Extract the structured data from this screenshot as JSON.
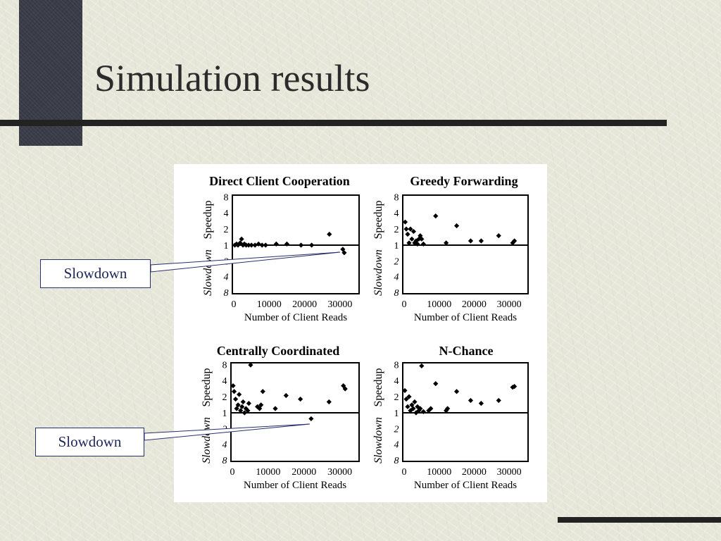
{
  "slide": {
    "title": "Simulation results"
  },
  "callouts": [
    {
      "label": "Slowdown"
    },
    {
      "label": "Slowdown"
    }
  ],
  "chart_data": [
    {
      "type": "scatter",
      "title": "Direct Client Cooperation",
      "xlabel": "Number of Client Reads",
      "ylabel_up": "Speedup",
      "ylabel_down": "Slowdown",
      "xlim": [
        0,
        35000
      ],
      "xticks": [
        "0",
        "10000",
        "20000",
        "30000"
      ],
      "yticks": [
        "8",
        "4",
        "2",
        "1",
        "2",
        "4",
        "8"
      ],
      "y_scale": "log2, signed (positive = speedup, negative = slowdown), baseline 1",
      "points": [
        [
          300,
          1
        ],
        [
          800,
          1.05
        ],
        [
          1200,
          1
        ],
        [
          1800,
          1.1
        ],
        [
          2200,
          1.3
        ],
        [
          2600,
          1
        ],
        [
          3000,
          1.05
        ],
        [
          3500,
          1
        ],
        [
          4200,
          1
        ],
        [
          5000,
          1
        ],
        [
          6000,
          1
        ],
        [
          7000,
          1.05
        ],
        [
          8000,
          1
        ],
        [
          9000,
          1
        ],
        [
          12000,
          1.05
        ],
        [
          15000,
          1.05
        ],
        [
          19000,
          1
        ],
        [
          22000,
          1
        ],
        [
          27000,
          1.6
        ],
        [
          30800,
          -1.2
        ],
        [
          31200,
          -1.4
        ]
      ],
      "grid": false
    },
    {
      "type": "scatter",
      "title": "Greedy Forwarding",
      "xlabel": "Number of Client Reads",
      "ylabel_up": "Speedup",
      "ylabel_down": "Slowdown",
      "xlim": [
        0,
        35000
      ],
      "xticks": [
        "0",
        "10000",
        "20000",
        "30000"
      ],
      "yticks": [
        "8",
        "4",
        "2",
        "1",
        "2",
        "4",
        "8"
      ],
      "y_scale": "log2, signed (positive = speedup, negative = slowdown), baseline 1",
      "points": [
        [
          300,
          2.7
        ],
        [
          600,
          2.0
        ],
        [
          1000,
          1.6
        ],
        [
          1400,
          1.1
        ],
        [
          1800,
          2.0
        ],
        [
          2200,
          1.3
        ],
        [
          2700,
          1.8
        ],
        [
          3000,
          1.1
        ],
        [
          3400,
          1.2
        ],
        [
          3800,
          1.05
        ],
        [
          4200,
          1.3
        ],
        [
          4600,
          1.5
        ],
        [
          5000,
          1.3
        ],
        [
          5500,
          1.05
        ],
        [
          9000,
          3.5
        ],
        [
          12000,
          1.1
        ],
        [
          15000,
          2.3
        ],
        [
          19000,
          1.2
        ],
        [
          22000,
          1.2
        ],
        [
          27000,
          1.5
        ],
        [
          31000,
          1.1
        ],
        [
          31500,
          1.2
        ]
      ],
      "grid": false
    },
    {
      "type": "scatter",
      "title": "Centrally Coordinated",
      "xlabel": "Number of Client Reads",
      "ylabel_up": "Speedup",
      "ylabel_down": "Slowdown",
      "xlim": [
        0,
        35000
      ],
      "xticks": [
        "0",
        "10000",
        "20000",
        "30000"
      ],
      "yticks": [
        "8",
        "4",
        "2",
        "1",
        "2",
        "4",
        "8"
      ],
      "y_scale": "log2, signed (positive = speedup, negative = slowdown), baseline 1",
      "points": [
        [
          200,
          3.2
        ],
        [
          500,
          2.5
        ],
        [
          900,
          1.8
        ],
        [
          1200,
          1.2
        ],
        [
          1600,
          1.4
        ],
        [
          1900,
          2.2
        ],
        [
          2300,
          1.1
        ],
        [
          2700,
          1.3
        ],
        [
          3000,
          1.6
        ],
        [
          3400,
          1.0
        ],
        [
          3800,
          1.2
        ],
        [
          4300,
          1.1
        ],
        [
          4600,
          1.5
        ],
        [
          5100,
          7.8
        ],
        [
          7000,
          1.3
        ],
        [
          7600,
          1.2
        ],
        [
          8000,
          1.4
        ],
        [
          8500,
          2.5
        ],
        [
          12000,
          1.2
        ],
        [
          15000,
          2.1
        ],
        [
          19000,
          1.8
        ],
        [
          22000,
          -1.3
        ],
        [
          27000,
          1.6
        ],
        [
          31000,
          3.2
        ],
        [
          31500,
          2.8
        ]
      ],
      "grid": false
    },
    {
      "type": "scatter",
      "title": "N-Chance",
      "xlabel": "Number of Client Reads",
      "ylabel_up": "Speedup",
      "ylabel_down": "Slowdown",
      "xlim": [
        0,
        35000
      ],
      "xticks": [
        "0",
        "10000",
        "20000",
        "30000"
      ],
      "yticks": [
        "8",
        "4",
        "2",
        "1",
        "2",
        "4",
        "8"
      ],
      "y_scale": "log2, signed (positive = speedup, negative = slowdown), baseline 1",
      "points": [
        [
          200,
          2.6
        ],
        [
          600,
          1.8
        ],
        [
          1000,
          1.3
        ],
        [
          1400,
          2.0
        ],
        [
          1800,
          1.1
        ],
        [
          2200,
          1.4
        ],
        [
          2600,
          1.2
        ],
        [
          3000,
          1.6
        ],
        [
          3400,
          1.0
        ],
        [
          3800,
          1.3
        ],
        [
          4200,
          1.1
        ],
        [
          4600,
          1.2
        ],
        [
          5000,
          7.5
        ],
        [
          5500,
          1.05
        ],
        [
          7000,
          1.1
        ],
        [
          7600,
          1.2
        ],
        [
          9000,
          3.5
        ],
        [
          12000,
          1.1
        ],
        [
          12400,
          1.2
        ],
        [
          15000,
          2.5
        ],
        [
          19000,
          1.7
        ],
        [
          22000,
          1.5
        ],
        [
          27000,
          1.7
        ],
        [
          31000,
          3.0
        ],
        [
          31500,
          3.1
        ]
      ],
      "grid": false
    }
  ]
}
